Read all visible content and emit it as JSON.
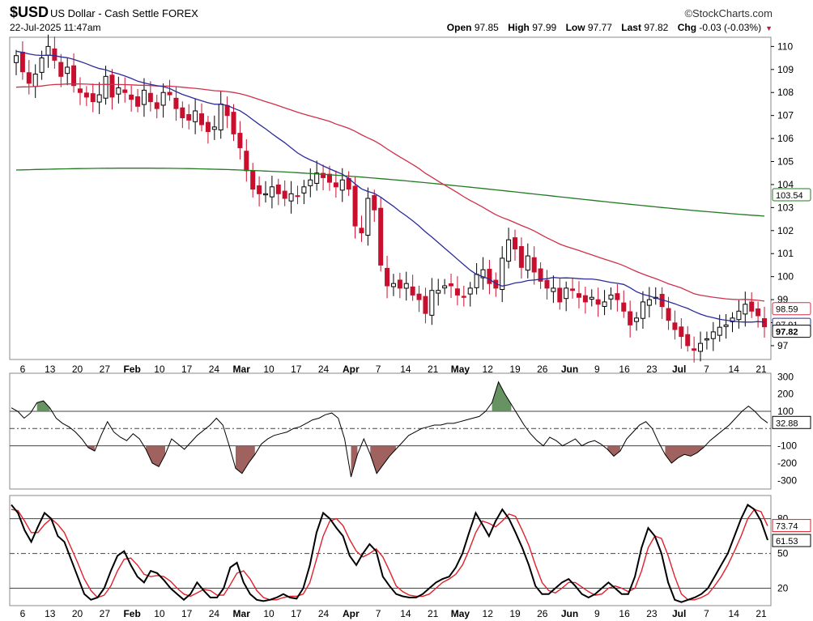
{
  "header": {
    "symbol": "$USD",
    "description": "US Dollar - Cash Settle",
    "exchange": "FOREX",
    "datetime": "22-Jul-2025 11:47am",
    "brand": "©StockCharts.com",
    "open_label": "Open",
    "open": "97.85",
    "high_label": "High",
    "high": "97.99",
    "low_label": "Low",
    "low": "97.77",
    "last_label": "Last",
    "last": "97.82",
    "chg_label": "Chg",
    "chg": "-0.03 (-0.03%)"
  },
  "colors": {
    "up_candle": "#ffffff",
    "down_candle": "#c8102e",
    "ma20": "#2b2b9a",
    "ma50": "#d0304a",
    "ma200": "#227a22",
    "cci_pos": "#5f8c5a",
    "cci_neg": "#9b5a55",
    "stoch_k": "#000000",
    "stoch_d": "#e0202a"
  },
  "chart_data": [
    {
      "type": "candlestick",
      "panel": "price",
      "ylim": [
        96.4,
        110.4
      ],
      "yticks": [
        "97",
        "98",
        "99",
        "100",
        "101",
        "102",
        "103",
        "104",
        "105",
        "106",
        "107",
        "108",
        "109",
        "110"
      ],
      "xticks": [
        "6",
        "13",
        "20",
        "27",
        "Feb",
        "10",
        "17",
        "24",
        "Mar",
        "10",
        "17",
        "24",
        "Apr",
        "7",
        "14",
        "21",
        "May",
        "12",
        "19",
        "26",
        "Jun",
        "9",
        "16",
        "23",
        "Jul",
        "7",
        "14",
        "21"
      ],
      "closes": [
        109.6,
        108.9,
        108.4,
        108.8,
        109.5,
        110.0,
        109.4,
        108.7,
        109.1,
        108.3,
        108.0,
        107.8,
        107.6,
        107.9,
        108.7,
        107.8,
        108.2,
        108.0,
        107.7,
        107.4,
        108.1,
        107.6,
        107.3,
        108.0,
        107.9,
        107.3,
        106.9,
        106.8,
        107.2,
        106.6,
        106.3,
        106.5,
        107.5,
        107.0,
        106.2,
        105.6,
        104.6,
        103.8,
        103.6,
        103.6,
        103.9,
        103.6,
        103.4,
        103.6,
        103.5,
        103.9,
        104.2,
        104.5,
        104.3,
        104.1,
        103.9,
        104.2,
        103.8,
        102.2,
        101.9,
        103.4,
        102.9,
        100.5,
        99.6,
        99.7,
        99.5,
        99.7,
        99.2,
        99.0,
        98.4,
        99.4,
        99.4,
        99.6,
        99.6,
        99.2,
        99.1,
        99.5,
        100.1,
        100.3,
        99.7,
        99.5,
        100.8,
        101.6,
        101.2,
        100.4,
        100.9,
        100.2,
        99.8,
        99.5,
        99.5,
        98.9,
        99.5,
        99.4,
        99.1,
        98.9,
        99.1,
        98.8,
        98.9,
        99.2,
        99.0,
        98.5,
        97.9,
        98.2,
        98.9,
        99.0,
        99.1,
        98.7,
        98.1,
        97.7,
        97.4,
        97.0,
        96.8,
        97.1,
        97.3,
        97.6,
        97.8,
        97.9,
        98.2,
        98.5,
        98.8,
        98.5,
        98.3,
        97.82
      ],
      "series": [
        {
          "name": "MA20",
          "last": "97.91"
        },
        {
          "name": "MA50",
          "last": "98.59"
        },
        {
          "name": "MA200",
          "last": "103.54"
        }
      ],
      "last_value": "97.82",
      "ma200_value": "103.54",
      "ma50_value": "98.59",
      "ma20_value": "97.91"
    },
    {
      "type": "line",
      "panel": "cci",
      "ylim": [
        -350,
        320
      ],
      "yticks": [
        "300",
        "200",
        "100",
        "-100",
        "-200",
        "-300"
      ],
      "reference_lines": [
        100,
        0,
        -100
      ],
      "last_value": "32.88",
      "values": [
        120,
        100,
        60,
        90,
        150,
        160,
        120,
        60,
        30,
        10,
        -20,
        -60,
        -110,
        -130,
        -40,
        40,
        -20,
        -50,
        -70,
        -30,
        -60,
        -120,
        -200,
        -220,
        -150,
        -60,
        -90,
        -120,
        -80,
        -40,
        -10,
        20,
        60,
        20,
        -100,
        -230,
        -260,
        -200,
        -150,
        -90,
        -60,
        -40,
        -30,
        -20,
        0,
        10,
        30,
        50,
        60,
        80,
        90,
        60,
        -60,
        -280,
        -150,
        -60,
        -150,
        -260,
        -210,
        -160,
        -120,
        -80,
        -40,
        -20,
        0,
        10,
        20,
        20,
        30,
        30,
        40,
        50,
        60,
        70,
        100,
        150,
        270,
        200,
        140,
        80,
        20,
        -30,
        -70,
        -100,
        -50,
        -70,
        -100,
        -80,
        -60,
        -100,
        -80,
        -70,
        -90,
        -120,
        -160,
        -130,
        -60,
        -20,
        20,
        40,
        0,
        -80,
        -150,
        -200,
        -170,
        -150,
        -160,
        -140,
        -110,
        -70,
        -40,
        -10,
        20,
        60,
        100,
        130,
        100,
        60,
        32.88
      ]
    },
    {
      "type": "line",
      "panel": "stochastic",
      "ylim": [
        5,
        100
      ],
      "yticks": [
        "80",
        "50",
        "20"
      ],
      "reference_lines": [
        80,
        50,
        20
      ],
      "series": [
        {
          "name": "%K",
          "last": "61.53",
          "values": [
            92,
            85,
            70,
            60,
            73,
            85,
            80,
            65,
            60,
            45,
            30,
            15,
            10,
            12,
            20,
            35,
            48,
            52,
            40,
            30,
            25,
            35,
            33,
            27,
            20,
            15,
            10,
            15,
            25,
            18,
            12,
            12,
            20,
            38,
            42,
            25,
            15,
            10,
            9,
            10,
            12,
            15,
            12,
            11,
            20,
            40,
            68,
            85,
            80,
            72,
            65,
            48,
            40,
            50,
            58,
            52,
            30,
            22,
            15,
            13,
            12,
            12,
            15,
            20,
            25,
            28,
            30,
            38,
            50,
            68,
            85,
            75,
            65,
            78,
            88,
            80,
            68,
            55,
            40,
            22,
            15,
            15,
            20,
            25,
            28,
            22,
            15,
            12,
            15,
            20,
            25,
            20,
            15,
            15,
            30,
            55,
            72,
            65,
            50,
            25,
            10,
            8,
            10,
            12,
            15,
            20,
            30,
            40,
            50,
            65,
            80,
            92,
            88,
            78,
            61.53
          ]
        },
        {
          "name": "%D",
          "last": "73.74",
          "values": [
            88,
            87,
            78,
            68,
            68,
            75,
            80,
            75,
            68,
            55,
            42,
            28,
            18,
            12,
            14,
            22,
            35,
            45,
            46,
            40,
            32,
            30,
            31,
            30,
            26,
            20,
            15,
            13,
            16,
            19,
            18,
            14,
            14,
            23,
            33,
            35,
            28,
            18,
            12,
            10,
            10,
            12,
            13,
            13,
            15,
            25,
            45,
            65,
            78,
            80,
            74,
            62,
            52,
            47,
            50,
            54,
            47,
            35,
            22,
            17,
            14,
            13,
            13,
            15,
            20,
            25,
            28,
            32,
            40,
            53,
            68,
            78,
            76,
            73,
            78,
            84,
            82,
            70,
            57,
            40,
            25,
            18,
            16,
            20,
            25,
            25,
            21,
            17,
            14,
            15,
            20,
            22,
            20,
            17,
            20,
            35,
            55,
            65,
            63,
            48,
            30,
            15,
            10,
            10,
            12,
            15,
            22,
            30,
            40,
            52,
            65,
            80,
            88,
            86,
            73.74
          ]
        }
      ],
      "k_last": "61.53",
      "d_last": "73.74"
    }
  ]
}
